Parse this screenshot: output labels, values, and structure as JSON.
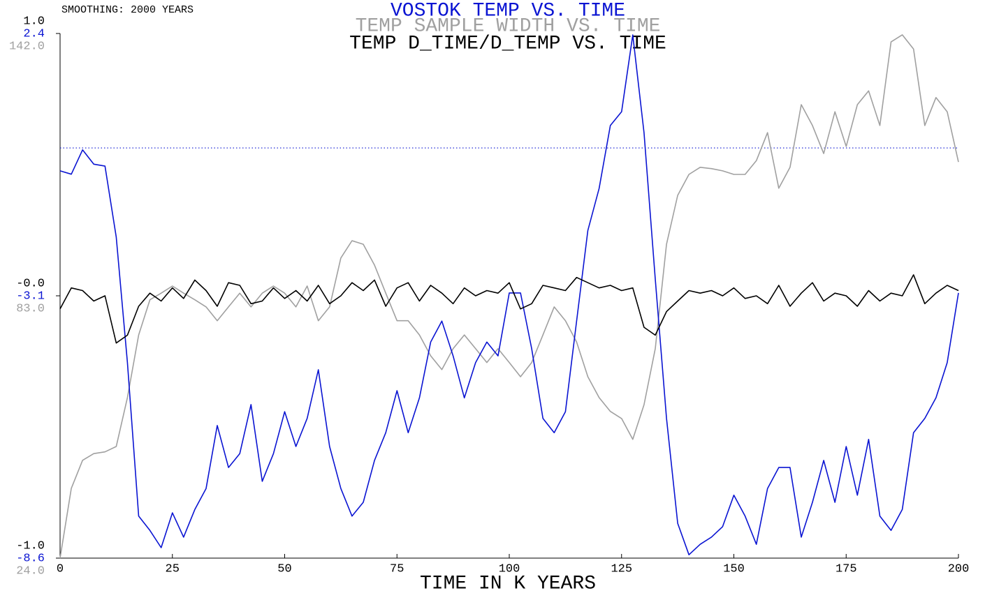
{
  "annotation": "SMOOTHING: 2000 YEARS",
  "chart_data": [
    {
      "type": "line",
      "title": "VOSTOK TEMP VS. TIME",
      "xlabel": "TIME IN K YEARS",
      "color": "#0a14d2",
      "xlim": [
        0,
        200
      ],
      "xticks": [
        0,
        25,
        50,
        75,
        100,
        125,
        150,
        175,
        200
      ],
      "ylim": [
        -8.6,
        2.4
      ],
      "yticks": [
        2.4,
        -3.1,
        -8.6
      ],
      "hline": 0,
      "x": [
        0,
        2.5,
        5,
        7.5,
        10,
        12.5,
        15,
        17.5,
        20,
        22.5,
        25,
        27.5,
        30,
        32.5,
        35,
        37.5,
        40,
        42.5,
        45,
        47.5,
        50,
        52.5,
        55,
        57.5,
        60,
        62.5,
        65,
        67.5,
        70,
        72.5,
        75,
        77.5,
        80,
        82.5,
        85,
        87.5,
        90,
        92.5,
        95,
        97.5,
        100,
        102.5,
        105,
        107.5,
        110,
        112.5,
        115,
        117.5,
        120,
        122.5,
        125,
        127.5,
        130,
        132.5,
        135,
        137.5,
        140,
        142.5,
        145,
        147.5,
        150,
        152.5,
        155,
        157.5,
        160,
        162.5,
        165,
        167.5,
        170,
        172.5,
        175,
        177.5,
        180,
        182.5,
        185,
        187.5,
        190,
        192.5,
        195,
        197.5,
        200
      ],
      "values": [
        -0.48,
        -0.55,
        -0.04,
        -0.34,
        -0.38,
        -1.87,
        -4.5,
        -7.72,
        -8.02,
        -8.38,
        -7.65,
        -8.16,
        -7.58,
        -7.14,
        -5.82,
        -6.7,
        -6.41,
        -5.38,
        -6.99,
        -6.41,
        -5.53,
        -6.26,
        -5.67,
        -4.65,
        -6.26,
        -7.14,
        -7.72,
        -7.43,
        -6.55,
        -5.97,
        -5.09,
        -5.97,
        -5.24,
        -4.07,
        -3.63,
        -4.36,
        -5.24,
        -4.5,
        -4.07,
        -4.36,
        -3.04,
        -3.04,
        -4.21,
        -5.67,
        -5.97,
        -5.53,
        -3.63,
        -1.73,
        -0.85,
        0.47,
        0.76,
        2.37,
        0.32,
        -2.75,
        -5.67,
        -7.87,
        -8.53,
        -8.31,
        -8.16,
        -7.94,
        -7.28,
        -7.72,
        -8.31,
        -7.14,
        -6.7,
        -6.7,
        -8.16,
        -7.43,
        -6.55,
        -7.43,
        -6.26,
        -7.28,
        -6.11,
        -7.72,
        -8.02,
        -7.58,
        -5.97,
        -5.67,
        -5.24,
        -4.5,
        -3.04
      ]
    },
    {
      "type": "line",
      "title": "TEMP SAMPLE WIDTH VS. TIME",
      "color": "#a0a0a0",
      "ylim": [
        24,
        142
      ],
      "yticks": [
        {
          "value": 142,
          "label": "142.0"
        },
        {
          "value": 83,
          "label": "83.0"
        },
        {
          "value": 24,
          "label": "24.0"
        }
      ],
      "x": [
        0,
        2.5,
        5,
        7.5,
        10,
        12.5,
        15,
        17.5,
        20,
        22.5,
        25,
        27.5,
        30,
        32.5,
        35,
        37.5,
        40,
        42.5,
        45,
        47.5,
        50,
        52.5,
        55,
        57.5,
        60,
        62.5,
        65,
        67.5,
        70,
        72.5,
        75,
        77.5,
        80,
        82.5,
        85,
        87.5,
        90,
        92.5,
        95,
        97.5,
        100,
        102.5,
        105,
        107.5,
        110,
        112.5,
        115,
        117.5,
        120,
        122.5,
        125,
        127.5,
        130,
        132.5,
        135,
        137.5,
        140,
        142.5,
        145,
        147.5,
        150,
        152.5,
        155,
        157.5,
        160,
        162.5,
        165,
        167.5,
        170,
        172.5,
        175,
        177.5,
        180,
        182.5,
        185,
        187.5,
        190,
        192.5,
        195,
        197.5,
        200
      ],
      "values": [
        24,
        39.7,
        46,
        47.5,
        47.9,
        49.1,
        60.1,
        74.2,
        82.1,
        83.6,
        85.2,
        83.6,
        82.1,
        80.5,
        77.4,
        80.5,
        83.6,
        80.5,
        83.6,
        85.2,
        83.6,
        80.5,
        85.2,
        77.4,
        80.5,
        91.5,
        95.4,
        94.6,
        89.9,
        83.6,
        77.4,
        77.4,
        74.2,
        69.5,
        66.4,
        71.1,
        74.2,
        71.1,
        68,
        71.1,
        68,
        64.8,
        68,
        74.2,
        80.5,
        77.4,
        72.6,
        64.8,
        60.1,
        57,
        55.4,
        50.7,
        58.5,
        71.1,
        94.6,
        105.6,
        110.3,
        111.9,
        111.6,
        111.1,
        110.3,
        110.3,
        113.4,
        119.7,
        107.2,
        111.9,
        126,
        121.3,
        115,
        124.4,
        116.6,
        126,
        129.1,
        121.3,
        140.1,
        141.7,
        138.5,
        121.3,
        127.6,
        124.4,
        113.1
      ]
    },
    {
      "type": "line",
      "title": "TEMP D_TIME/D_TEMP VS. TIME",
      "color": "#000000",
      "ylim": [
        -1,
        1
      ],
      "yticks": [
        {
          "value": 1,
          "label": "1.0"
        },
        {
          "value": 0,
          "label": "-0.0"
        },
        {
          "value": -1,
          "label": "-1.0"
        }
      ],
      "x": [
        0,
        2.5,
        5,
        7.5,
        10,
        12.5,
        15,
        17.5,
        20,
        22.5,
        25,
        27.5,
        30,
        32.5,
        35,
        37.5,
        40,
        42.5,
        45,
        47.5,
        50,
        52.5,
        55,
        57.5,
        60,
        62.5,
        65,
        67.5,
        70,
        72.5,
        75,
        77.5,
        80,
        82.5,
        85,
        87.5,
        90,
        92.5,
        95,
        97.5,
        100,
        102.5,
        105,
        107.5,
        110,
        112.5,
        115,
        117.5,
        120,
        122.5,
        125,
        127.5,
        130,
        132.5,
        135,
        137.5,
        140,
        142.5,
        145,
        147.5,
        150,
        152.5,
        155,
        157.5,
        160,
        162.5,
        165,
        167.5,
        170,
        172.5,
        175,
        177.5,
        180,
        182.5,
        185,
        187.5,
        190,
        192.5,
        195,
        197.5,
        200
      ],
      "values": [
        -0.05,
        0.03,
        0.02,
        -0.02,
        0,
        -0.18,
        -0.15,
        -0.04,
        0.01,
        -0.02,
        0.03,
        -0.01,
        0.06,
        0.02,
        -0.04,
        0.05,
        0.04,
        -0.03,
        -0.02,
        0.03,
        -0.01,
        0.02,
        -0.02,
        0.04,
        -0.03,
        0,
        0.05,
        0.02,
        0.06,
        -0.04,
        0.03,
        0.05,
        -0.02,
        0.04,
        0.01,
        -0.03,
        0.03,
        0,
        0.02,
        0.01,
        0.05,
        -0.05,
        -0.03,
        0.04,
        0.03,
        0.02,
        0.07,
        0.05,
        0.03,
        0.04,
        0.02,
        0.03,
        -0.12,
        -0.15,
        -0.06,
        -0.02,
        0.02,
        0.01,
        0.02,
        0,
        0.03,
        -0.01,
        0,
        -0.03,
        0.04,
        -0.04,
        0.01,
        0.05,
        -0.02,
        0.01,
        0,
        -0.04,
        0.02,
        -0.02,
        0.01,
        0,
        0.08,
        -0.03,
        0.01,
        0.04,
        0.02
      ]
    }
  ]
}
